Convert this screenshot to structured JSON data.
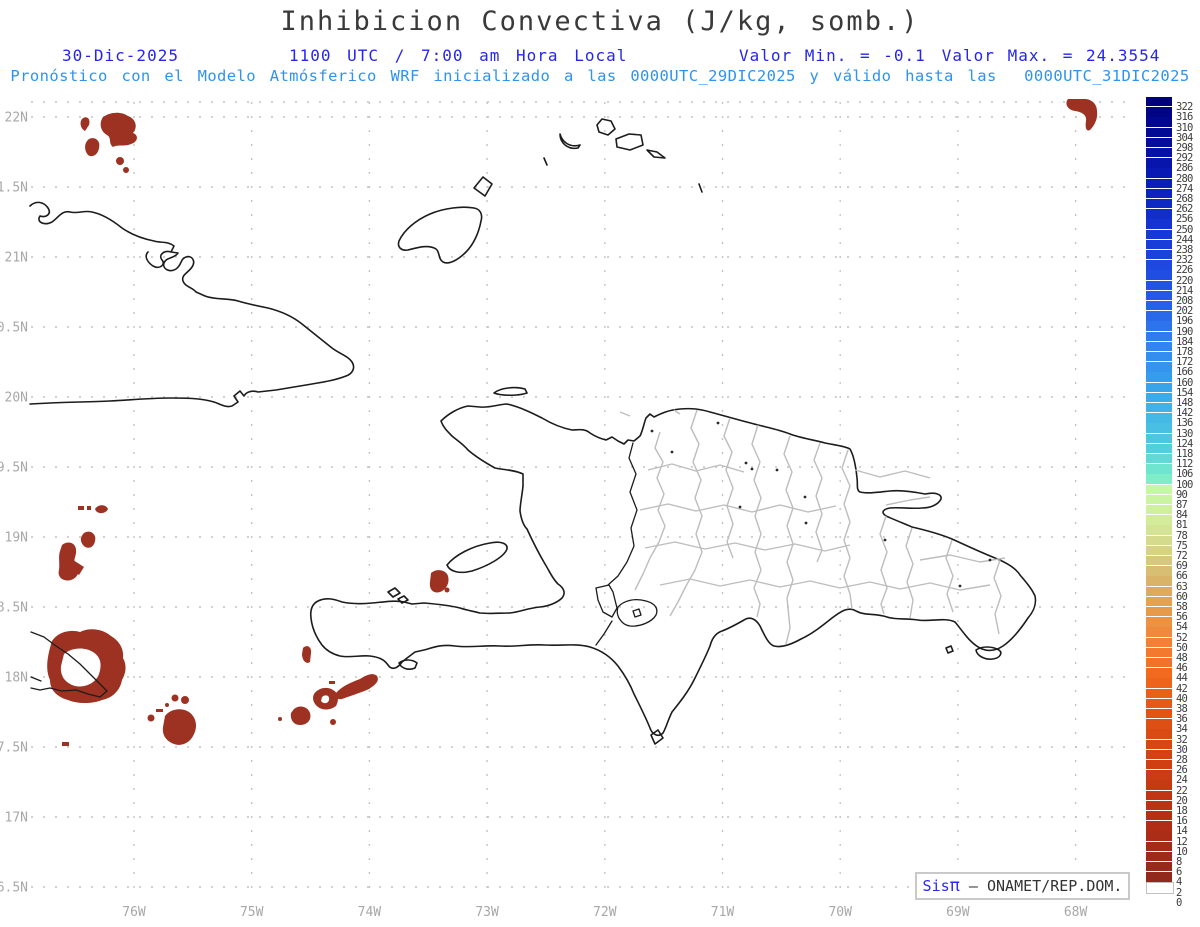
{
  "title": "Inhibicion Convectiva (J/kg, somb.)",
  "header": {
    "date": "30-Dic-2025",
    "valid_time": "1100 UTC / 7:00 am Hora Local",
    "min_label": "Valor Min. = -0.1",
    "max_label": "Valor Max. = 24.3554",
    "model_line": "Pronóstico con el Modelo Atmósferico WRF inicializado a las 0000UTC_29DIC2025 y válido hasta las  0000UTC_31DIC2025"
  },
  "attribution": {
    "sis": "Sis",
    "pi": "π",
    "org": " – ONAMET/REP.DOM."
  },
  "axes": {
    "lat_labels": [
      "22N",
      "1.5N",
      "21N",
      "0.5N",
      "20N",
      "9.5N",
      "19N",
      "8.5N",
      "18N",
      "7.5N",
      "17N",
      "6.5N"
    ],
    "lon_labels": [
      "76W",
      "75W",
      "74W",
      "73W",
      "72W",
      "71W",
      "70W",
      "69W",
      "68W"
    ]
  },
  "colors": {
    "header_blue": "#2626e8",
    "forecast_blue": "#2e93f0",
    "title_gray": "#3a3a3a",
    "axis_label_gray": "#a8a8a8",
    "grid_gray": "#c4c4c4",
    "coast_black": "#1c1c1c",
    "province_gray": "#bdbdbd",
    "cin_shade_red": "#9e3222",
    "colorbar_zero_cell": "#ffffff",
    "colorbar_stops": [
      [
        0,
        "#00007d"
      ],
      [
        7,
        "#0819b4"
      ],
      [
        13,
        "#1638d6"
      ],
      [
        19,
        "#2558e8"
      ],
      [
        25,
        "#338eef"
      ],
      [
        30,
        "#3fb2e8"
      ],
      [
        34,
        "#52cedd"
      ],
      [
        36,
        "#6fe4cf"
      ],
      [
        37,
        "#7feec8"
      ],
      [
        38,
        "#c6f8a4"
      ],
      [
        41,
        "#d2ec9c"
      ],
      [
        44,
        "#d6d386"
      ],
      [
        47,
        "#d9b468"
      ],
      [
        50,
        "#e89a4b"
      ],
      [
        53,
        "#f28134"
      ],
      [
        56,
        "#f26a20"
      ],
      [
        60,
        "#e25314"
      ],
      [
        65,
        "#cf3f12"
      ],
      [
        70,
        "#b72f15"
      ],
      [
        74,
        "#9f2a19"
      ],
      [
        76,
        "#92291d"
      ]
    ]
  },
  "chart_data": {
    "type": "heatmap",
    "variable": "Inhibicion Convectiva (Convective Inhibition, shaded)",
    "units": "J/kg",
    "value_min": -0.1,
    "value_max": 24.3554,
    "model": "WRF (ONAMET)",
    "init": "0000UTC_29DIC2025",
    "valid_until": "0000UTC_31DIC2025",
    "valid_at": "30-Dic-2025 1100 UTC / 7:00 am Hora Local",
    "lat_range_deg_n": [
      16.4,
      22.1
    ],
    "lon_range_deg_w": [
      76.9,
      67.5
    ],
    "colorbar_labels": [
      322,
      316,
      310,
      304,
      298,
      292,
      286,
      280,
      274,
      268,
      262,
      256,
      250,
      244,
      238,
      232,
      226,
      220,
      214,
      208,
      202,
      196,
      190,
      184,
      178,
      172,
      166,
      160,
      154,
      148,
      142,
      136,
      130,
      124,
      118,
      112,
      106,
      100,
      90,
      87,
      84,
      81,
      78,
      75,
      72,
      69,
      66,
      63,
      60,
      58,
      56,
      54,
      52,
      50,
      48,
      46,
      44,
      42,
      40,
      38,
      36,
      34,
      32,
      30,
      28,
      26,
      24,
      22,
      20,
      18,
      16,
      14,
      12,
      10,
      8,
      6,
      4,
      2,
      0
    ],
    "shaded_note": "Only low CIN values (≈2–24 J/kg, dark red) appear: SE Bahamas, SW of Haiti, around eastern Jamaica, and NE corner of domain"
  }
}
